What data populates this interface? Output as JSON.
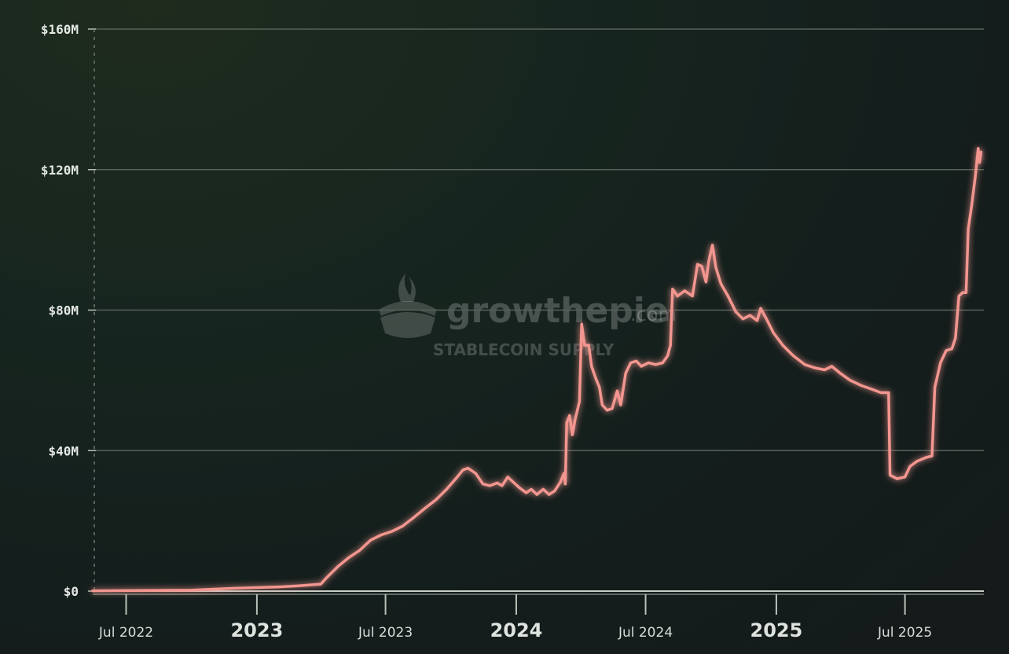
{
  "watermark": {
    "brand": "growthepie",
    "domain": ".com",
    "subtitle": "STABLECOIN SUPPLY"
  },
  "colors": {
    "line": "#f2968f",
    "grid": "#56625a",
    "axis": "#b9c0b9"
  },
  "chart_data": {
    "type": "line",
    "title": "",
    "xlabel": "",
    "ylabel": "",
    "ylim": [
      0,
      160
    ],
    "y_unit": "$M",
    "yticks": [
      {
        "value": 0,
        "label": "$0"
      },
      {
        "value": 40,
        "label": "$40M"
      },
      {
        "value": 80,
        "label": "$80M"
      },
      {
        "value": 120,
        "label": "$120M"
      },
      {
        "value": 160,
        "label": "$160M"
      }
    ],
    "xlim": [
      "2022-05-15",
      "2025-10-20"
    ],
    "xticks": [
      {
        "date": "2022-07-01",
        "label": "Jul 2022",
        "major": false
      },
      {
        "date": "2023-01-01",
        "label": "2023",
        "major": true
      },
      {
        "date": "2023-07-01",
        "label": "Jul 2023",
        "major": false
      },
      {
        "date": "2024-01-01",
        "label": "2024",
        "major": true
      },
      {
        "date": "2024-07-01",
        "label": "Jul 2024",
        "major": false
      },
      {
        "date": "2025-01-01",
        "label": "2025",
        "major": true
      },
      {
        "date": "2025-07-01",
        "label": "Jul 2025",
        "major": false
      }
    ],
    "grid": true,
    "series": [
      {
        "color": "#f2968f",
        "points": [
          [
            "2022-05-15",
            0.1
          ],
          [
            "2022-08-01",
            0.2
          ],
          [
            "2022-10-01",
            0.3
          ],
          [
            "2022-12-01",
            0.8
          ],
          [
            "2023-01-01",
            1.0
          ],
          [
            "2023-02-01",
            1.2
          ],
          [
            "2023-03-01",
            1.5
          ],
          [
            "2023-04-01",
            2.0
          ],
          [
            "2023-04-10",
            4.0
          ],
          [
            "2023-04-25",
            7.0
          ],
          [
            "2023-05-10",
            9.5
          ],
          [
            "2023-05-25",
            11.5
          ],
          [
            "2023-06-10",
            14.5
          ],
          [
            "2023-06-25",
            16.0
          ],
          [
            "2023-07-10",
            17.0
          ],
          [
            "2023-07-25",
            18.5
          ],
          [
            "2023-08-10",
            21.0
          ],
          [
            "2023-08-25",
            23.5
          ],
          [
            "2023-09-10",
            26.0
          ],
          [
            "2023-09-25",
            29.0
          ],
          [
            "2023-10-10",
            32.5
          ],
          [
            "2023-10-18",
            34.5
          ],
          [
            "2023-10-25",
            35.0
          ],
          [
            "2023-11-05",
            33.5
          ],
          [
            "2023-11-15",
            30.5
          ],
          [
            "2023-11-25",
            30.0
          ],
          [
            "2023-12-05",
            30.8
          ],
          [
            "2023-12-12",
            30.0
          ],
          [
            "2023-12-20",
            32.5
          ],
          [
            "2023-12-28",
            31.0
          ],
          [
            "2024-01-05",
            29.5
          ],
          [
            "2024-01-15",
            28.0
          ],
          [
            "2024-01-22",
            29.0
          ],
          [
            "2024-01-30",
            27.5
          ],
          [
            "2024-02-08",
            29.0
          ],
          [
            "2024-02-16",
            27.5
          ],
          [
            "2024-02-24",
            28.5
          ],
          [
            "2024-03-03",
            31.0
          ],
          [
            "2024-03-08",
            33.5
          ],
          [
            "2024-03-10",
            30.5
          ],
          [
            "2024-03-12",
            48.0
          ],
          [
            "2024-03-16",
            50.0
          ],
          [
            "2024-03-20",
            44.5
          ],
          [
            "2024-03-24",
            49.0
          ],
          [
            "2024-03-30",
            54.0
          ],
          [
            "2024-04-02",
            76.0
          ],
          [
            "2024-04-06",
            70.0
          ],
          [
            "2024-04-12",
            70.0
          ],
          [
            "2024-04-16",
            64.0
          ],
          [
            "2024-04-22",
            60.5
          ],
          [
            "2024-04-27",
            58.0
          ],
          [
            "2024-05-01",
            53.0
          ],
          [
            "2024-05-08",
            51.5
          ],
          [
            "2024-05-15",
            52.0
          ],
          [
            "2024-05-22",
            57.0
          ],
          [
            "2024-05-27",
            53.0
          ],
          [
            "2024-06-03",
            62.0
          ],
          [
            "2024-06-10",
            65.0
          ],
          [
            "2024-06-18",
            65.5
          ],
          [
            "2024-06-25",
            64.0
          ],
          [
            "2024-07-05",
            65.0
          ],
          [
            "2024-07-15",
            64.5
          ],
          [
            "2024-07-25",
            65.0
          ],
          [
            "2024-08-01",
            67.0
          ],
          [
            "2024-08-05",
            70.0
          ],
          [
            "2024-08-08",
            86.0
          ],
          [
            "2024-08-15",
            84.0
          ],
          [
            "2024-08-25",
            85.5
          ],
          [
            "2024-09-05",
            84.0
          ],
          [
            "2024-09-12",
            93.0
          ],
          [
            "2024-09-18",
            92.5
          ],
          [
            "2024-09-24",
            88.0
          ],
          [
            "2024-09-28",
            94.0
          ],
          [
            "2024-10-03",
            98.5
          ],
          [
            "2024-10-08",
            92.0
          ],
          [
            "2024-10-15",
            87.5
          ],
          [
            "2024-10-25",
            84.0
          ],
          [
            "2024-11-05",
            79.5
          ],
          [
            "2024-11-15",
            77.5
          ],
          [
            "2024-11-25",
            78.5
          ],
          [
            "2024-12-05",
            77.0
          ],
          [
            "2024-12-10",
            80.5
          ],
          [
            "2024-12-18",
            77.5
          ],
          [
            "2024-12-28",
            73.5
          ],
          [
            "2025-01-10",
            70.0
          ],
          [
            "2025-01-25",
            67.0
          ],
          [
            "2025-02-10",
            64.5
          ],
          [
            "2025-02-25",
            63.5
          ],
          [
            "2025-03-10",
            63.0
          ],
          [
            "2025-03-20",
            64.0
          ],
          [
            "2025-04-01",
            62.0
          ],
          [
            "2025-04-15",
            60.0
          ],
          [
            "2025-05-01",
            58.5
          ],
          [
            "2025-05-15",
            57.5
          ],
          [
            "2025-05-28",
            56.5
          ],
          [
            "2025-06-08",
            56.5
          ],
          [
            "2025-06-10",
            33.0
          ],
          [
            "2025-06-20",
            32.0
          ],
          [
            "2025-07-01",
            32.5
          ],
          [
            "2025-07-08",
            35.5
          ],
          [
            "2025-07-18",
            37.0
          ],
          [
            "2025-07-30",
            38.0
          ],
          [
            "2025-08-08",
            38.5
          ],
          [
            "2025-08-12",
            58.0
          ],
          [
            "2025-08-20",
            65.0
          ],
          [
            "2025-08-28",
            68.5
          ],
          [
            "2025-09-05",
            69.0
          ],
          [
            "2025-09-10",
            72.0
          ],
          [
            "2025-09-15",
            84.0
          ],
          [
            "2025-09-20",
            85.0
          ],
          [
            "2025-09-25",
            85.0
          ],
          [
            "2025-09-28",
            103.0
          ],
          [
            "2025-10-03",
            110.0
          ],
          [
            "2025-10-08",
            118.0
          ],
          [
            "2025-10-12",
            126.0
          ],
          [
            "2025-10-14",
            122.0
          ],
          [
            "2025-10-16",
            125.0
          ]
        ]
      }
    ]
  }
}
